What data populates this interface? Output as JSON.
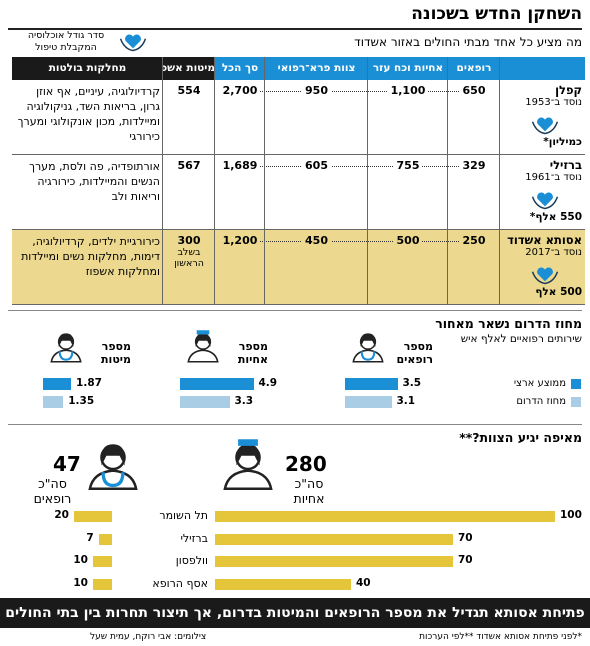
{
  "header": {
    "title": "השחקן החדש בשכונה",
    "subtitle": "מה מציע כל אחד מבתי החולים באזור אשדוד",
    "legend_note": "סדר גודל אוכלוסיה המקבלת טיפול"
  },
  "table": {
    "columns": [
      "רופאים",
      "אחיות וכח עזר",
      "צוות פרא־רפואי",
      "סך הכל",
      "מיטות אשפוז",
      "מחלקות בולטות"
    ],
    "rows": [
      {
        "name": "קפלן",
        "founded": "נוסד ב־1953",
        "population": "כמיליון*",
        "cells": [
          "650",
          "1,100",
          "950",
          "2,700",
          "554"
        ],
        "departments": "קרדיולוגיה, עיניים, אף אוזן גרון, בריאות השד, גניקולוגיה ומיילדות, מכון אונקולוגי ומערך כירורגי"
      },
      {
        "name": "ברזילי",
        "founded": "נוסד ב־1961",
        "population": "550 אלף*",
        "cells": [
          "329",
          "755",
          "605",
          "1,689",
          "567"
        ],
        "departments": "אורתופדיה, פה ולסת, מערך הנשים והמיילדות, כירורגיה וריאות ולב"
      },
      {
        "name": "אסותא אשדוד",
        "founded": "נוסד ב־2017",
        "population": "500 אלף",
        "cells": [
          "250",
          "500",
          "450",
          "1,200",
          "300"
        ],
        "beds_note": "בשלב הראשון",
        "departments": "כירורגיית ילדים, קרדיולוגיה, דימות, מחלקות נשים ומיילדות ומחלקות אשפוז"
      }
    ]
  },
  "chart_data": [
    {
      "type": "bar",
      "title": "מחוז הדרום נשאר מאחור",
      "subtitle": "שירותים רפואיים לאלף איש",
      "categories": [
        "מספר רופאים",
        "מספר אחיות",
        "מספר מיטות"
      ],
      "series": [
        {
          "name": "ממוצע ארצי",
          "color": "#1b8fd6",
          "values": [
            3.5,
            4.9,
            1.87
          ]
        },
        {
          "name": "מחוז הדרום",
          "color": "#a9cde4",
          "values": [
            3.1,
            3.3,
            1.35
          ]
        }
      ]
    },
    {
      "type": "bar",
      "title": "מאיפה יגיע הצוות?**",
      "categories": [
        "תל השומר",
        "ברזילי",
        "וולפסון",
        "אסף הרופא"
      ],
      "series": [
        {
          "name": "סה\"כ אחיות",
          "total": 280,
          "color": "#e5c53a",
          "values": [
            100,
            70,
            70,
            40
          ]
        },
        {
          "name": "סה\"כ רופאים",
          "total": 47,
          "color": "#e5c53a",
          "values": [
            20,
            7,
            10,
            10
          ]
        }
      ]
    }
  ],
  "banner": "פתיחת אסותא תגדיל את מספר הרופאים והמיטות בדרום, אך תיצור תחרות בין בתי החולים",
  "footnote": "*לפני פתיחת אסותא אשדוד **לפי הערכות",
  "credit": "צילומים: אבי רוקח, עמית שעל"
}
